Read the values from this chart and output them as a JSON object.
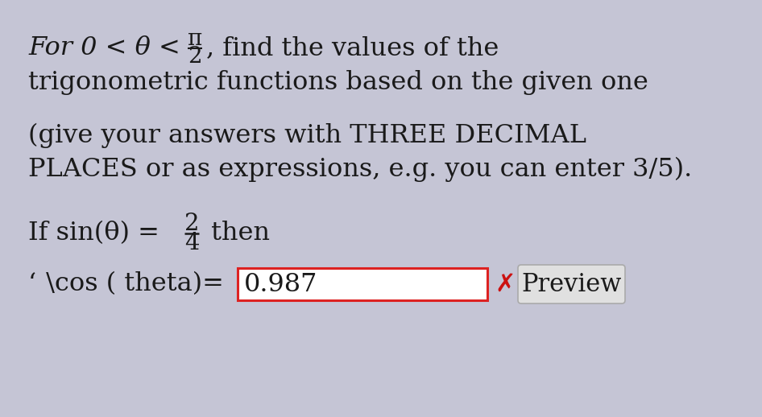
{
  "bg_color": "#c5c5d5",
  "text_color": "#1a1a1a",
  "fig_w": 9.46,
  "fig_h": 5.18,
  "dpi": 100,
  "line1_text": "For 0 < θ < ",
  "line1_suffix": ", find the values of the",
  "frac1_num": "π",
  "frac1_den": "2",
  "line2": "trigonometric functions based on the given one",
  "line3": "(give your answers with THREE DECIMAL",
  "line4": "PLACES or as expressions, e.g. you can enter 3/5).",
  "line5_prefix": "If sin(θ) = ",
  "frac2_num": "2",
  "frac2_den": "4",
  "line5_suffix": " then",
  "line6_label": " \\cos ( theta)= ",
  "input_value": "0.987",
  "preview_text": "Preview",
  "input_box_color": "#ffffff",
  "input_border_color": "#dd2222",
  "preview_box_color": "#e0e0e0",
  "preview_border_color": "#aaaaaa",
  "x_icon_color": "#cc1111",
  "x_icon": "✗"
}
